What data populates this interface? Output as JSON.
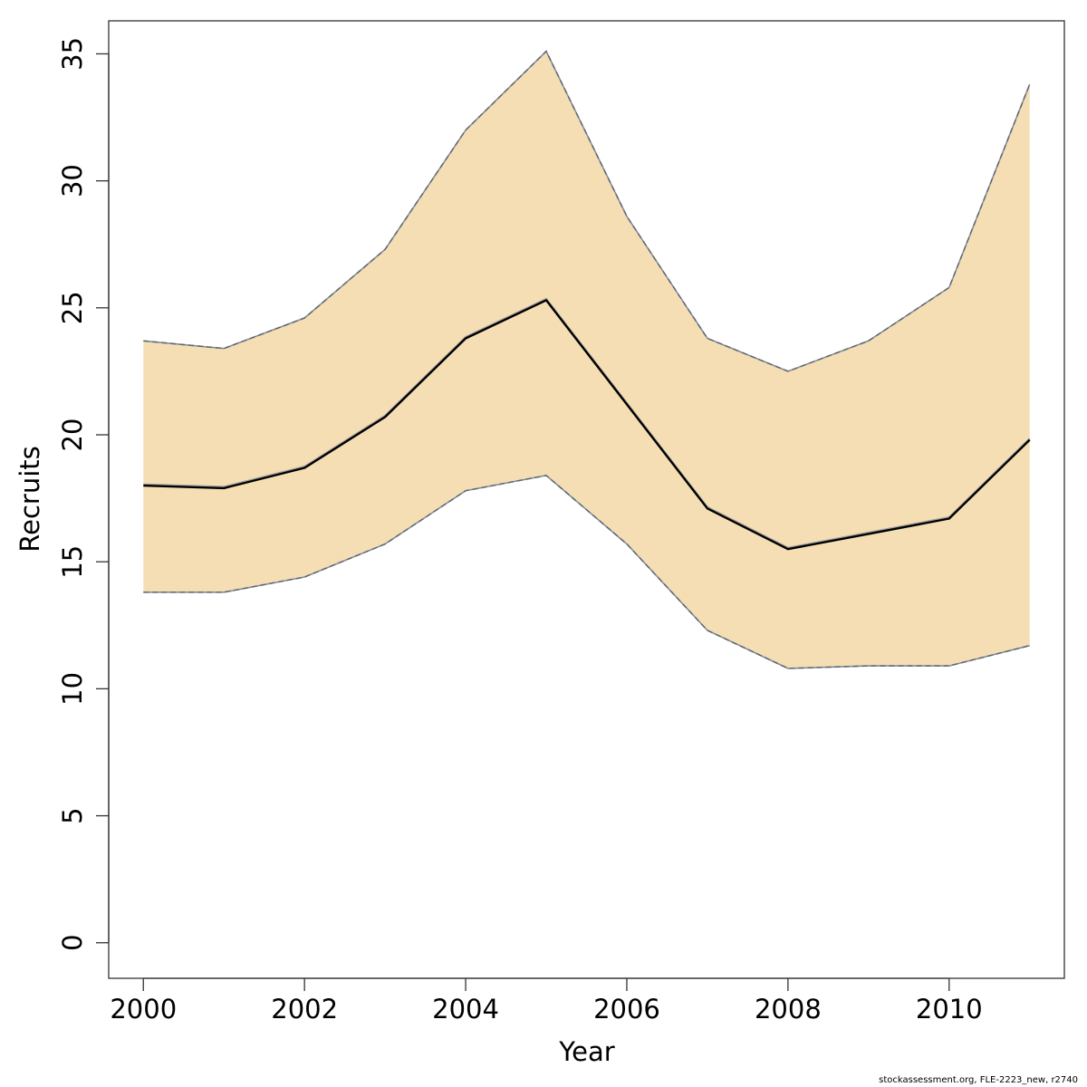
{
  "chart_data": {
    "type": "line",
    "xlabel": "Year",
    "ylabel": "Recruits",
    "xlim": [
      1999.57,
      2011.43
    ],
    "ylim": [
      -1.4,
      36.3
    ],
    "x_ticks": [
      2000,
      2002,
      2004,
      2006,
      2008,
      2010
    ],
    "y_ticks": [
      0,
      5,
      10,
      15,
      20,
      25,
      30,
      35
    ],
    "x": [
      2000,
      2001,
      2002,
      2003,
      2004,
      2005,
      2006,
      2007,
      2008,
      2009,
      2010,
      2011
    ],
    "series": [
      {
        "role": "estimate",
        "style": "solid",
        "values": [
          18.0,
          17.9,
          18.7,
          20.7,
          23.8,
          25.3,
          21.2,
          17.1,
          15.5,
          16.1,
          16.7,
          19.8
        ]
      },
      {
        "role": "upper",
        "style": "dashed",
        "values": [
          23.7,
          23.4,
          24.6,
          27.3,
          32.0,
          35.1,
          28.6,
          23.8,
          22.5,
          23.7,
          25.8,
          33.8
        ]
      },
      {
        "role": "lower",
        "style": "dashed",
        "values": [
          13.8,
          13.8,
          14.4,
          15.7,
          17.8,
          18.4,
          15.7,
          12.3,
          10.8,
          10.9,
          10.9,
          11.7
        ]
      }
    ],
    "grid": false,
    "colors": {
      "band": "#f5deb3",
      "band_edge": "#8c8c8c",
      "line": "#000000",
      "line_halo": "#a0a0a0",
      "dash": "#56657a"
    }
  },
  "footer": {
    "credit": "stockassessment.org, FLE-2223_new, r2740"
  }
}
